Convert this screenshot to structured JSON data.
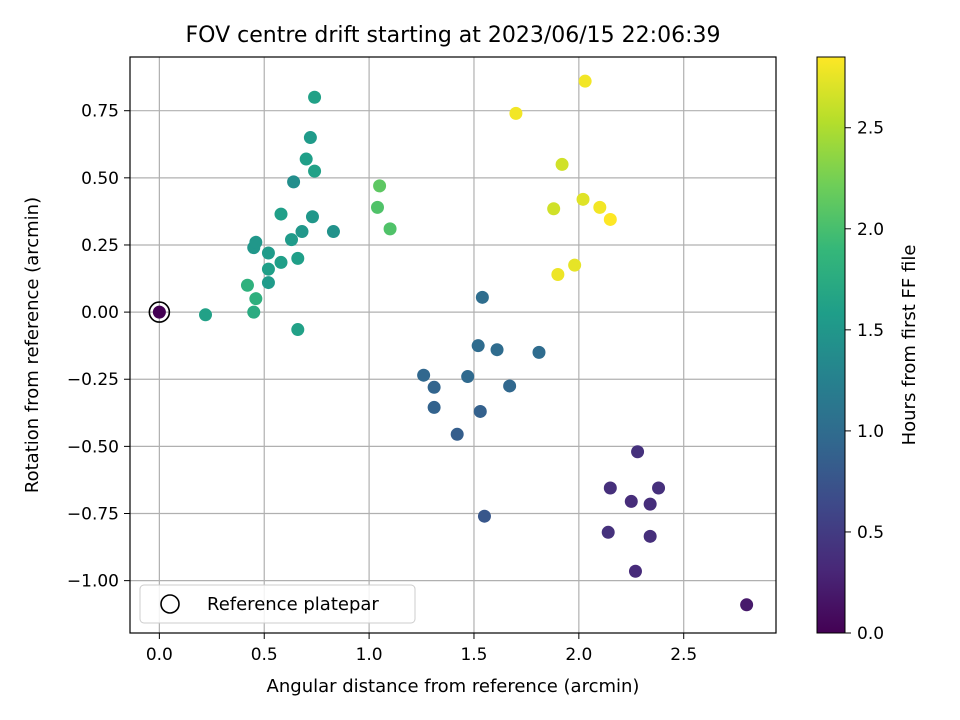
{
  "chart_data": {
    "type": "scatter",
    "title": "FOV centre drift starting at 2023/06/15 22:06:39",
    "xlabel": "Angular distance from reference (arcmin)",
    "ylabel": "Rotation from reference (arcmin)",
    "xlim": [
      -0.14,
      2.94
    ],
    "ylim": [
      -1.195,
      0.95
    ],
    "xticks": [
      0.0,
      0.5,
      1.0,
      1.5,
      2.0,
      2.5
    ],
    "xtick_labels": [
      "0.0",
      "0.5",
      "1.0",
      "1.5",
      "2.0",
      "2.5"
    ],
    "yticks": [
      -1.0,
      -0.75,
      -0.5,
      -0.25,
      0.0,
      0.25,
      0.5,
      0.75
    ],
    "ytick_labels": [
      "−1.00",
      "−0.75",
      "−0.50",
      "−0.25",
      "0.00",
      "0.25",
      "0.50",
      "0.75"
    ],
    "grid": true,
    "colormap": "viridis",
    "colorbar": {
      "label": "Hours from first FF file",
      "range": [
        0.0,
        2.85
      ],
      "ticks": [
        0.0,
        0.5,
        1.0,
        1.5,
        2.0,
        2.5
      ],
      "tick_labels": [
        "0.0",
        "0.5",
        "1.0",
        "1.5",
        "2.0",
        "2.5"
      ]
    },
    "legend": {
      "position": "lower-left",
      "label": "Reference platepar",
      "marker": "open-circle"
    },
    "reference_point": {
      "x": 0.0,
      "y": 0.0
    },
    "points": [
      {
        "x": 0.0,
        "y": 0.0,
        "hours": 0.0
      },
      {
        "x": 2.8,
        "y": -1.09,
        "hours": 0.2
      },
      {
        "x": 2.27,
        "y": -0.965,
        "hours": 0.35
      },
      {
        "x": 2.34,
        "y": -0.835,
        "hours": 0.38
      },
      {
        "x": 2.14,
        "y": -0.82,
        "hours": 0.4
      },
      {
        "x": 2.34,
        "y": -0.715,
        "hours": 0.37
      },
      {
        "x": 2.25,
        "y": -0.705,
        "hours": 0.36
      },
      {
        "x": 2.15,
        "y": -0.655,
        "hours": 0.38
      },
      {
        "x": 2.38,
        "y": -0.655,
        "hours": 0.39
      },
      {
        "x": 2.28,
        "y": -0.52,
        "hours": 0.4
      },
      {
        "x": 1.55,
        "y": -0.76,
        "hours": 0.78
      },
      {
        "x": 1.42,
        "y": -0.455,
        "hours": 0.85
      },
      {
        "x": 1.31,
        "y": -0.355,
        "hours": 0.9
      },
      {
        "x": 1.53,
        "y": -0.37,
        "hours": 0.88
      },
      {
        "x": 1.31,
        "y": -0.28,
        "hours": 0.92
      },
      {
        "x": 1.26,
        "y": -0.235,
        "hours": 0.95
      },
      {
        "x": 1.47,
        "y": -0.24,
        "hours": 0.97
      },
      {
        "x": 1.67,
        "y": -0.275,
        "hours": 0.95
      },
      {
        "x": 1.52,
        "y": -0.125,
        "hours": 1.0
      },
      {
        "x": 1.61,
        "y": -0.14,
        "hours": 1.0
      },
      {
        "x": 1.81,
        "y": -0.15,
        "hours": 1.0
      },
      {
        "x": 1.54,
        "y": 0.055,
        "hours": 1.02
      },
      {
        "x": 0.22,
        "y": -0.01,
        "hours": 1.62
      },
      {
        "x": 0.45,
        "y": 0.0,
        "hours": 1.75
      },
      {
        "x": 0.46,
        "y": 0.05,
        "hours": 1.8
      },
      {
        "x": 0.42,
        "y": 0.1,
        "hours": 1.82
      },
      {
        "x": 0.66,
        "y": -0.065,
        "hours": 1.62
      },
      {
        "x": 0.52,
        "y": 0.11,
        "hours": 1.55
      },
      {
        "x": 0.52,
        "y": 0.16,
        "hours": 1.6
      },
      {
        "x": 0.58,
        "y": 0.185,
        "hours": 1.6
      },
      {
        "x": 0.66,
        "y": 0.2,
        "hours": 1.6
      },
      {
        "x": 0.52,
        "y": 0.22,
        "hours": 1.55
      },
      {
        "x": 0.45,
        "y": 0.24,
        "hours": 1.5
      },
      {
        "x": 0.46,
        "y": 0.26,
        "hours": 1.5
      },
      {
        "x": 0.63,
        "y": 0.27,
        "hours": 1.55
      },
      {
        "x": 0.68,
        "y": 0.3,
        "hours": 1.5
      },
      {
        "x": 0.83,
        "y": 0.3,
        "hours": 1.45
      },
      {
        "x": 0.73,
        "y": 0.355,
        "hours": 1.5
      },
      {
        "x": 0.58,
        "y": 0.365,
        "hours": 1.6
      },
      {
        "x": 0.64,
        "y": 0.485,
        "hours": 1.4
      },
      {
        "x": 0.74,
        "y": 0.525,
        "hours": 1.62
      },
      {
        "x": 0.7,
        "y": 0.57,
        "hours": 1.6
      },
      {
        "x": 0.72,
        "y": 0.65,
        "hours": 1.55
      },
      {
        "x": 0.74,
        "y": 0.8,
        "hours": 1.62
      },
      {
        "x": 1.04,
        "y": 0.39,
        "hours": 2.05
      },
      {
        "x": 1.1,
        "y": 0.31,
        "hours": 2.05
      },
      {
        "x": 1.05,
        "y": 0.47,
        "hours": 2.12
      },
      {
        "x": 1.7,
        "y": 0.74,
        "hours": 2.8
      },
      {
        "x": 2.03,
        "y": 0.86,
        "hours": 2.8
      },
      {
        "x": 1.92,
        "y": 0.55,
        "hours": 2.65
      },
      {
        "x": 1.88,
        "y": 0.385,
        "hours": 2.65
      },
      {
        "x": 2.02,
        "y": 0.42,
        "hours": 2.72
      },
      {
        "x": 2.1,
        "y": 0.39,
        "hours": 2.8
      },
      {
        "x": 2.15,
        "y": 0.345,
        "hours": 2.85
      },
      {
        "x": 1.98,
        "y": 0.175,
        "hours": 2.75
      },
      {
        "x": 1.9,
        "y": 0.14,
        "hours": 2.78
      }
    ]
  }
}
